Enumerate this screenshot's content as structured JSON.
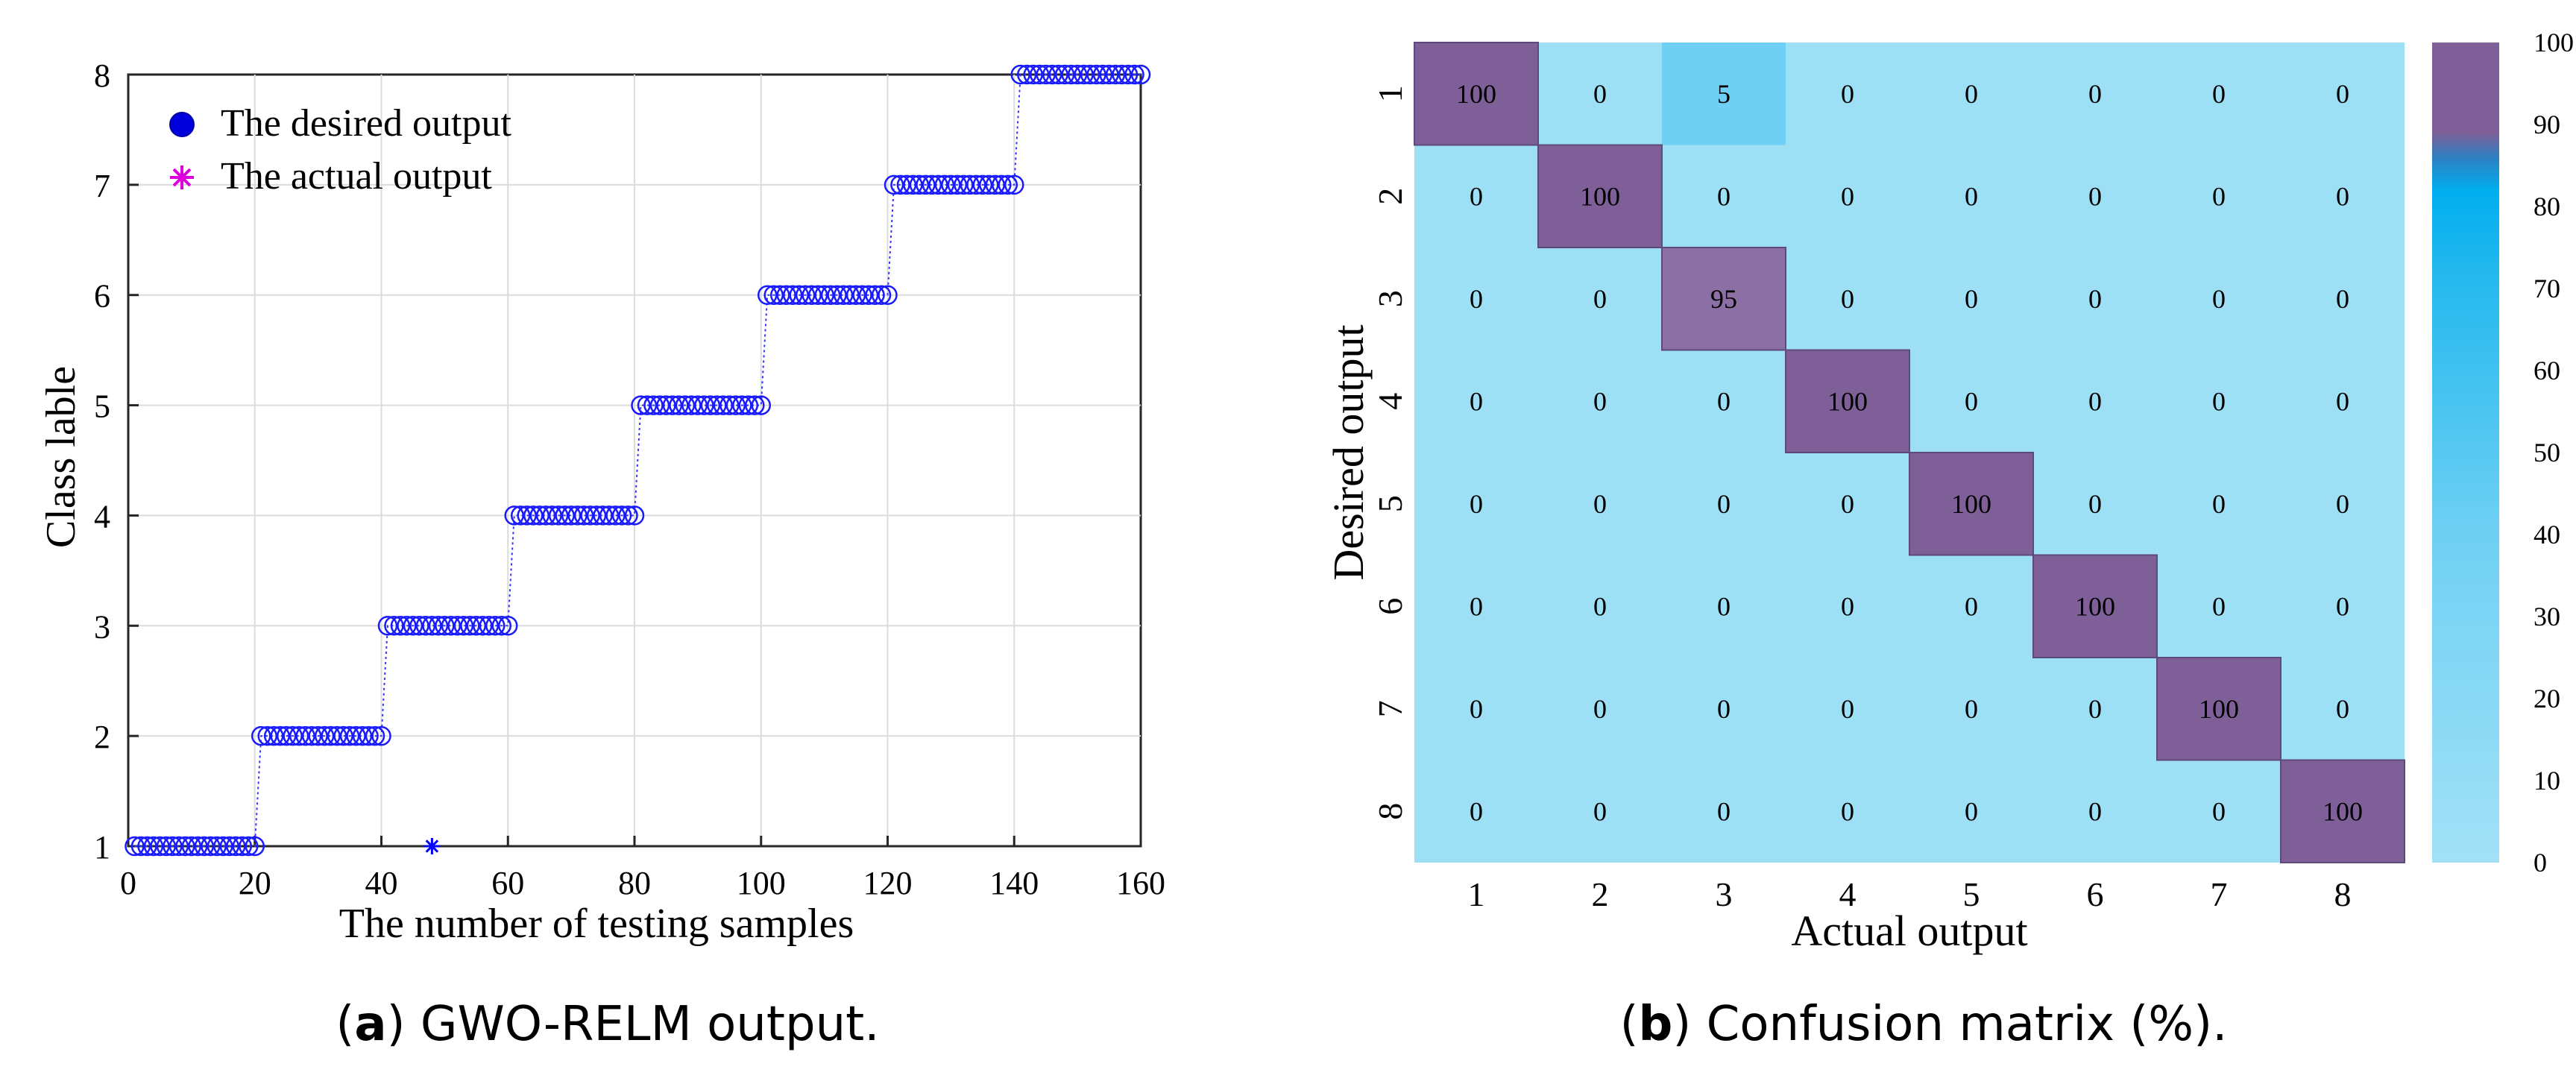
{
  "chart_data": [
    {
      "type": "scatter",
      "panel": "a",
      "xlabel": "The number of testing samples",
      "ylabel": "Class lable",
      "xlim": [
        0,
        160
      ],
      "ylim": [
        1,
        8
      ],
      "xticks": [
        0,
        20,
        40,
        60,
        80,
        100,
        120,
        140,
        160
      ],
      "yticks": [
        1,
        2,
        3,
        4,
        5,
        6,
        7,
        8
      ],
      "grid": true,
      "legend_position": "top-left",
      "series": [
        {
          "name": "The desired output",
          "marker": "circle",
          "color": "#0000ff",
          "segments": [
            {
              "x_from": 1,
              "x_to": 20,
              "y": 1
            },
            {
              "x_from": 21,
              "x_to": 40,
              "y": 2
            },
            {
              "x_from": 41,
              "x_to": 60,
              "y": 3
            },
            {
              "x_from": 61,
              "x_to": 80,
              "y": 4
            },
            {
              "x_from": 81,
              "x_to": 100,
              "y": 5
            },
            {
              "x_from": 101,
              "x_to": 120,
              "y": 6
            },
            {
              "x_from": 121,
              "x_to": 140,
              "y": 7
            },
            {
              "x_from": 141,
              "x_to": 160,
              "y": 8
            }
          ]
        },
        {
          "name": "The actual output",
          "marker": "asterisk",
          "color": "#0000ff",
          "note_outlier": {
            "x": 48,
            "y": 1
          }
        }
      ]
    },
    {
      "type": "heatmap",
      "panel": "b",
      "xlabel": "Actual output",
      "ylabel": "Desired output",
      "categories": [
        "1",
        "2",
        "3",
        "4",
        "5",
        "6",
        "7",
        "8"
      ],
      "values": [
        [
          100,
          0,
          5,
          0,
          0,
          0,
          0,
          0
        ],
        [
          0,
          100,
          0,
          0,
          0,
          0,
          0,
          0
        ],
        [
          0,
          0,
          95,
          0,
          0,
          0,
          0,
          0
        ],
        [
          0,
          0,
          0,
          100,
          0,
          0,
          0,
          0
        ],
        [
          0,
          0,
          0,
          0,
          100,
          0,
          0,
          0
        ],
        [
          0,
          0,
          0,
          0,
          0,
          100,
          0,
          0
        ],
        [
          0,
          0,
          0,
          0,
          0,
          0,
          100,
          0
        ],
        [
          0,
          0,
          0,
          0,
          0,
          0,
          0,
          100
        ]
      ],
      "colorbar_range": [
        0,
        100
      ],
      "colorbar_ticks": [
        0,
        10,
        20,
        30,
        40,
        50,
        60,
        70,
        80,
        90,
        100
      ],
      "colors": {
        "low": "#9ddff5",
        "mid": "#6fd0f3",
        "high_cyan": "#00aeef",
        "max": "#7e5f98",
        "near_max": "#8c6fa4"
      }
    }
  ],
  "captions": {
    "a": {
      "label": "a",
      "text": " GWO-RELM output."
    },
    "b": {
      "label": "b",
      "text": " Confusion matrix (%)."
    }
  }
}
